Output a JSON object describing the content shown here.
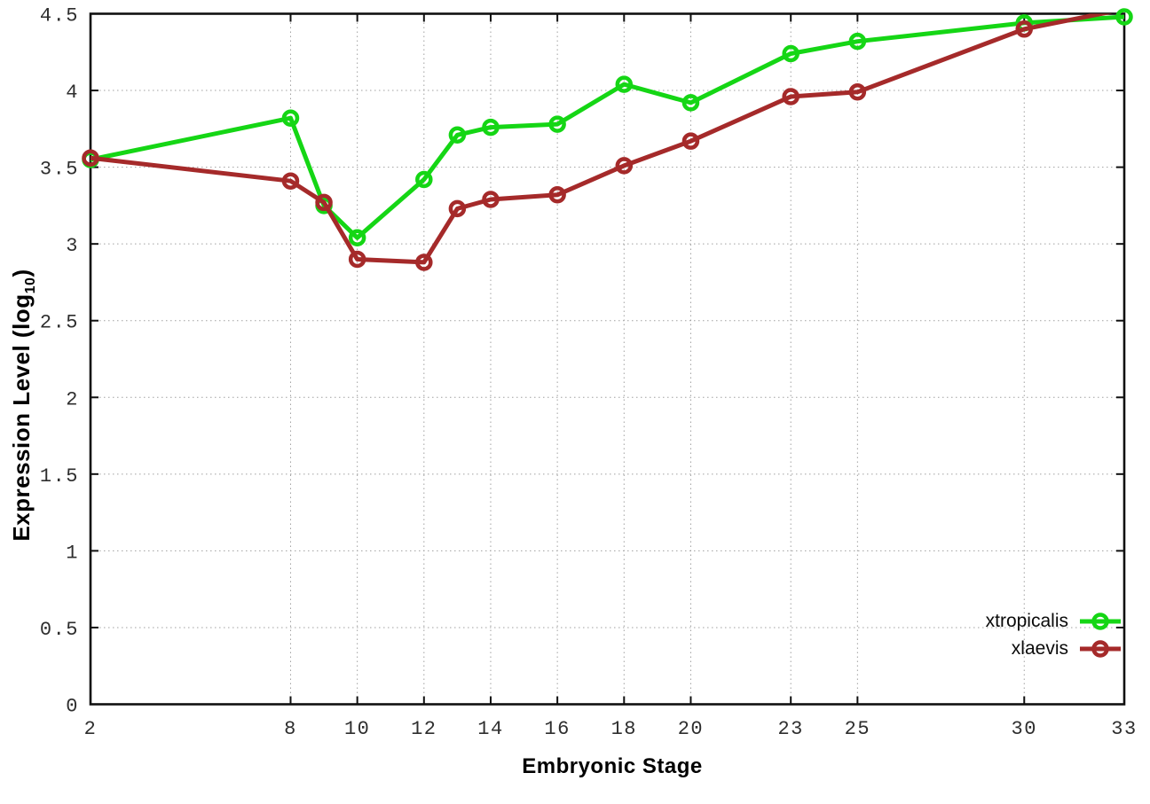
{
  "figure": {
    "title": "",
    "xlabel": "Embryonic Stage",
    "ylabel_prefix": "Expression Level (log",
    "ylabel_sub": "10",
    "ylabel_suffix": ")"
  },
  "chart_data": {
    "type": "line",
    "title": "",
    "xlabel": "Embryonic Stage",
    "ylabel": "Expression Level (log10)",
    "x": [
      2,
      8,
      9,
      10,
      12,
      13,
      14,
      16,
      18,
      20,
      23,
      25,
      30,
      33
    ],
    "series": [
      {
        "name": "xtropicalis",
        "color": "#15d615",
        "marker": "open-circle",
        "values": [
          3.55,
          3.82,
          3.25,
          3.04,
          3.42,
          3.71,
          3.76,
          3.78,
          4.04,
          3.92,
          4.24,
          4.32,
          4.44,
          4.48
        ]
      },
      {
        "name": "xlaevis",
        "color": "#a52a2a",
        "marker": "open-circle",
        "values": [
          3.56,
          3.41,
          3.27,
          2.9,
          2.88,
          3.23,
          3.29,
          3.32,
          3.51,
          3.67,
          3.96,
          3.99,
          4.4,
          4.53
        ]
      }
    ],
    "xlim": [
      2,
      33
    ],
    "ylim": [
      0,
      4.5
    ],
    "xticks": [
      2,
      8,
      10,
      12,
      14,
      16,
      18,
      20,
      23,
      25,
      30,
      33
    ],
    "yticks": [
      0,
      0.5,
      1,
      1.5,
      2,
      2.5,
      3,
      3.5,
      4,
      4.5
    ],
    "grid": true,
    "grid_style": "dotted",
    "legend_position": "inside-bottom-right",
    "note": "xlaevis value at stage 33 (~4.53) exceeds the y-axis max of 4.5, so its line is clipped at the top border and its marker is not drawn"
  },
  "style": {
    "background": "#ffffff",
    "border_color": "#101010",
    "grid_color": "#a0a0a0",
    "tick_label_color": "#2e2e2e",
    "label_color": "#000000",
    "series_line_width": 5,
    "marker_radius": 7.5,
    "marker_stroke_width": 4.5
  }
}
